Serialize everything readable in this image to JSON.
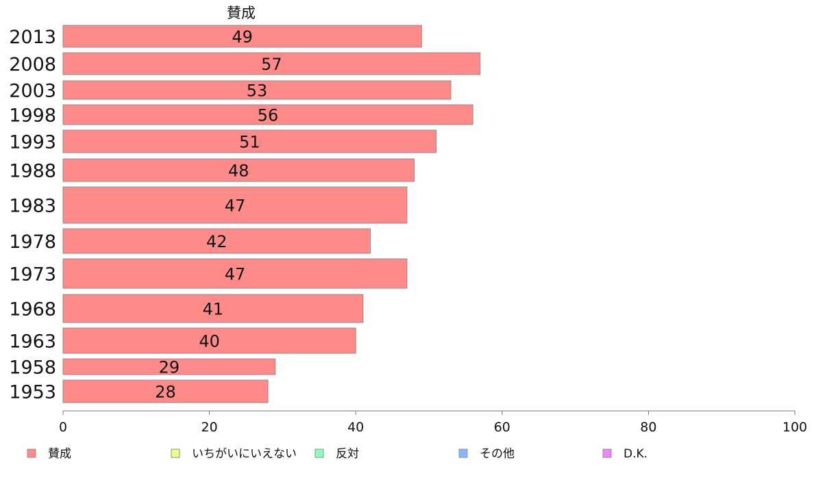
{
  "chart_data": {
    "type": "bar",
    "orientation": "horizontal",
    "title": "",
    "column_title": "賛成",
    "categories": [
      "2013",
      "2008",
      "2003",
      "1998",
      "1993",
      "1988",
      "1983",
      "1978",
      "1973",
      "1968",
      "1963",
      "1958",
      "1953"
    ],
    "series": [
      {
        "name": "賛成",
        "values": [
          49,
          57,
          53,
          56,
          51,
          48,
          47,
          42,
          47,
          41,
          40,
          29,
          28
        ],
        "color": "#ff8a8a"
      }
    ],
    "xlim": [
      0,
      100
    ],
    "xticks": [
      0,
      20,
      40,
      60,
      80,
      100
    ],
    "xlabel": "",
    "ylabel": "",
    "grid": false,
    "legend_position": "bottom",
    "legend": [
      {
        "label": "賛成",
        "color": "#ff8a8a"
      },
      {
        "label": "いちがいにいえない",
        "color": "#eeff8a"
      },
      {
        "label": "反対",
        "color": "#8affc0"
      },
      {
        "label": "その他",
        "color": "#8ab8ff"
      },
      {
        "label": "D.K.",
        "color": "#ee88ff"
      }
    ]
  }
}
